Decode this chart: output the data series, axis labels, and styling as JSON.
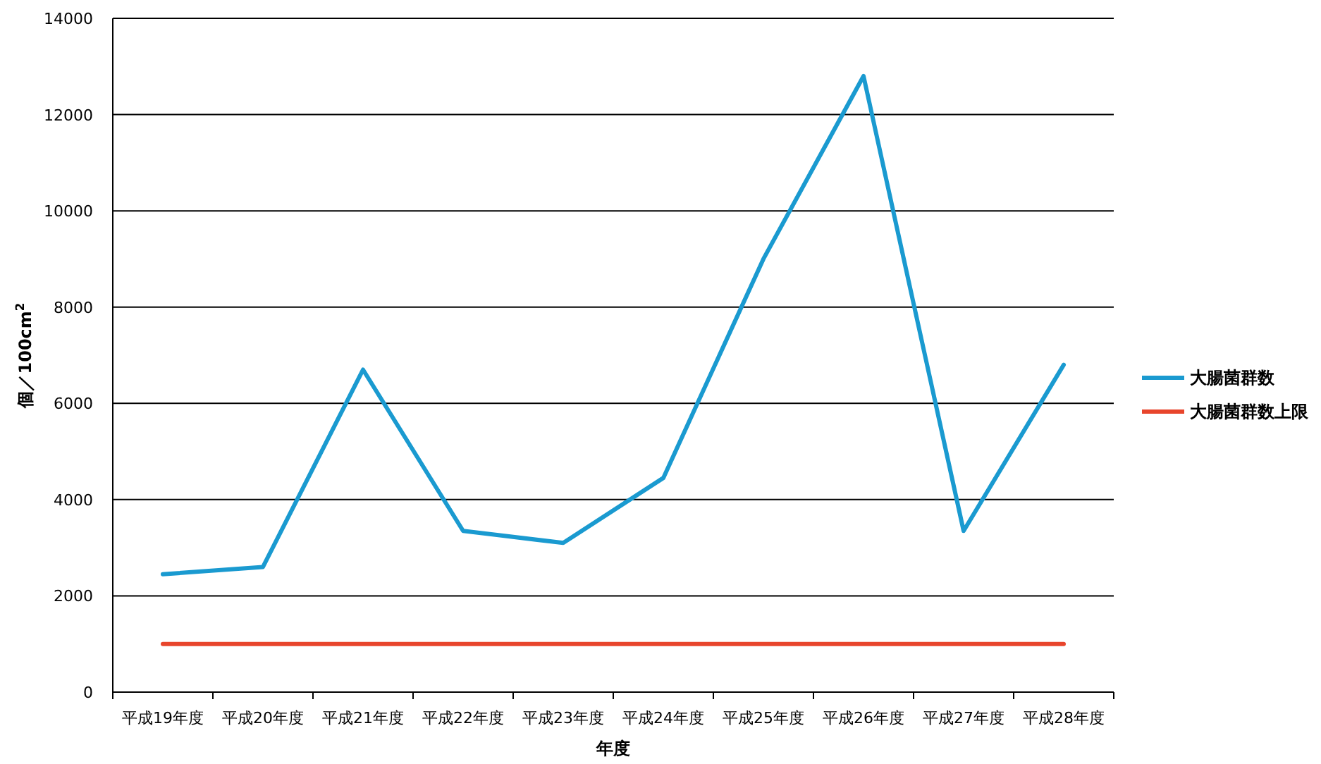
{
  "chart_data": {
    "type": "line",
    "xlabel": "年度",
    "ylabel": "個／100cm$^{2}$",
    "categories": [
      "平成19年度",
      "平成20年度",
      "平成21年度",
      "平成22年度",
      "平成23年度",
      "平成24年度",
      "平成25年度",
      "平成26年度",
      "平成27年度",
      "平成28年度"
    ],
    "series": [
      {
        "name": "大腸菌群数",
        "color": "#1a9ad0",
        "values": [
          2450,
          2600,
          6700,
          3350,
          3100,
          4450,
          9000,
          12800,
          3350,
          6800
        ]
      },
      {
        "name": "大腸菌群数上限",
        "color": "#e8452c",
        "values": [
          1000,
          1000,
          1000,
          1000,
          1000,
          1000,
          1000,
          1000,
          1000,
          1000
        ]
      }
    ],
    "ylim": [
      0,
      14000
    ],
    "yticks": [
      0,
      2000,
      4000,
      6000,
      8000,
      10000,
      12000,
      14000
    ],
    "grid": "y",
    "legend": "right",
    "marker": "none",
    "line_style": "solid"
  }
}
